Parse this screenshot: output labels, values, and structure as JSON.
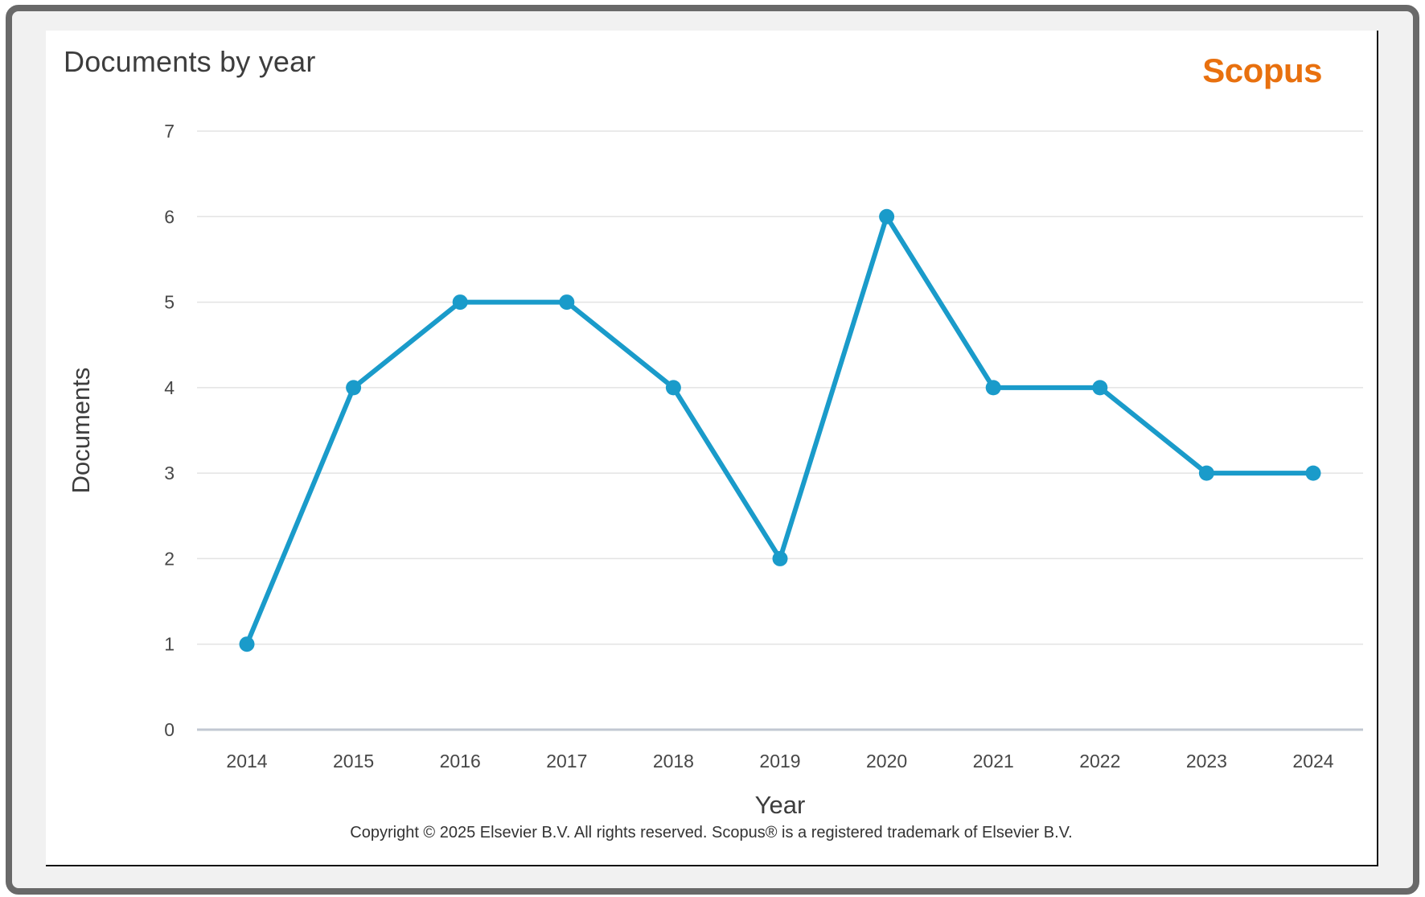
{
  "header": {
    "title": "Documents by year",
    "logo": "Scopus"
  },
  "chart_data": {
    "type": "line",
    "title": "Documents by year",
    "categories": [
      "2014",
      "2015",
      "2016",
      "2017",
      "2018",
      "2019",
      "2020",
      "2021",
      "2022",
      "2023",
      "2024"
    ],
    "series": [
      {
        "name": "Documents",
        "values": [
          1,
          4,
          5,
          5,
          4,
          2,
          6,
          4,
          4,
          3,
          3
        ]
      }
    ],
    "xlabel": "Year",
    "ylabel": "Documents",
    "ylim": [
      0,
      7
    ],
    "ytick_step": 1,
    "grid": "horizontal",
    "legend": "none",
    "marker": "circle"
  },
  "footer": {
    "copyright": "Copyright © 2025 Elsevier B.V. All rights reserved. Scopus® is a registered trademark of Elsevier B.V."
  },
  "colors": {
    "line": "#1a9bca",
    "marker": "#1a9bca",
    "gridline": "#e3e3e3",
    "axis_line": "#c2c8d2",
    "tick_text": "#474747",
    "title_text": "#3d3d3d",
    "scopus_orange": "#e8700e",
    "frame_border": "#696969",
    "frame_background": "#f1f1f1",
    "panel_background": "#ffffff"
  }
}
